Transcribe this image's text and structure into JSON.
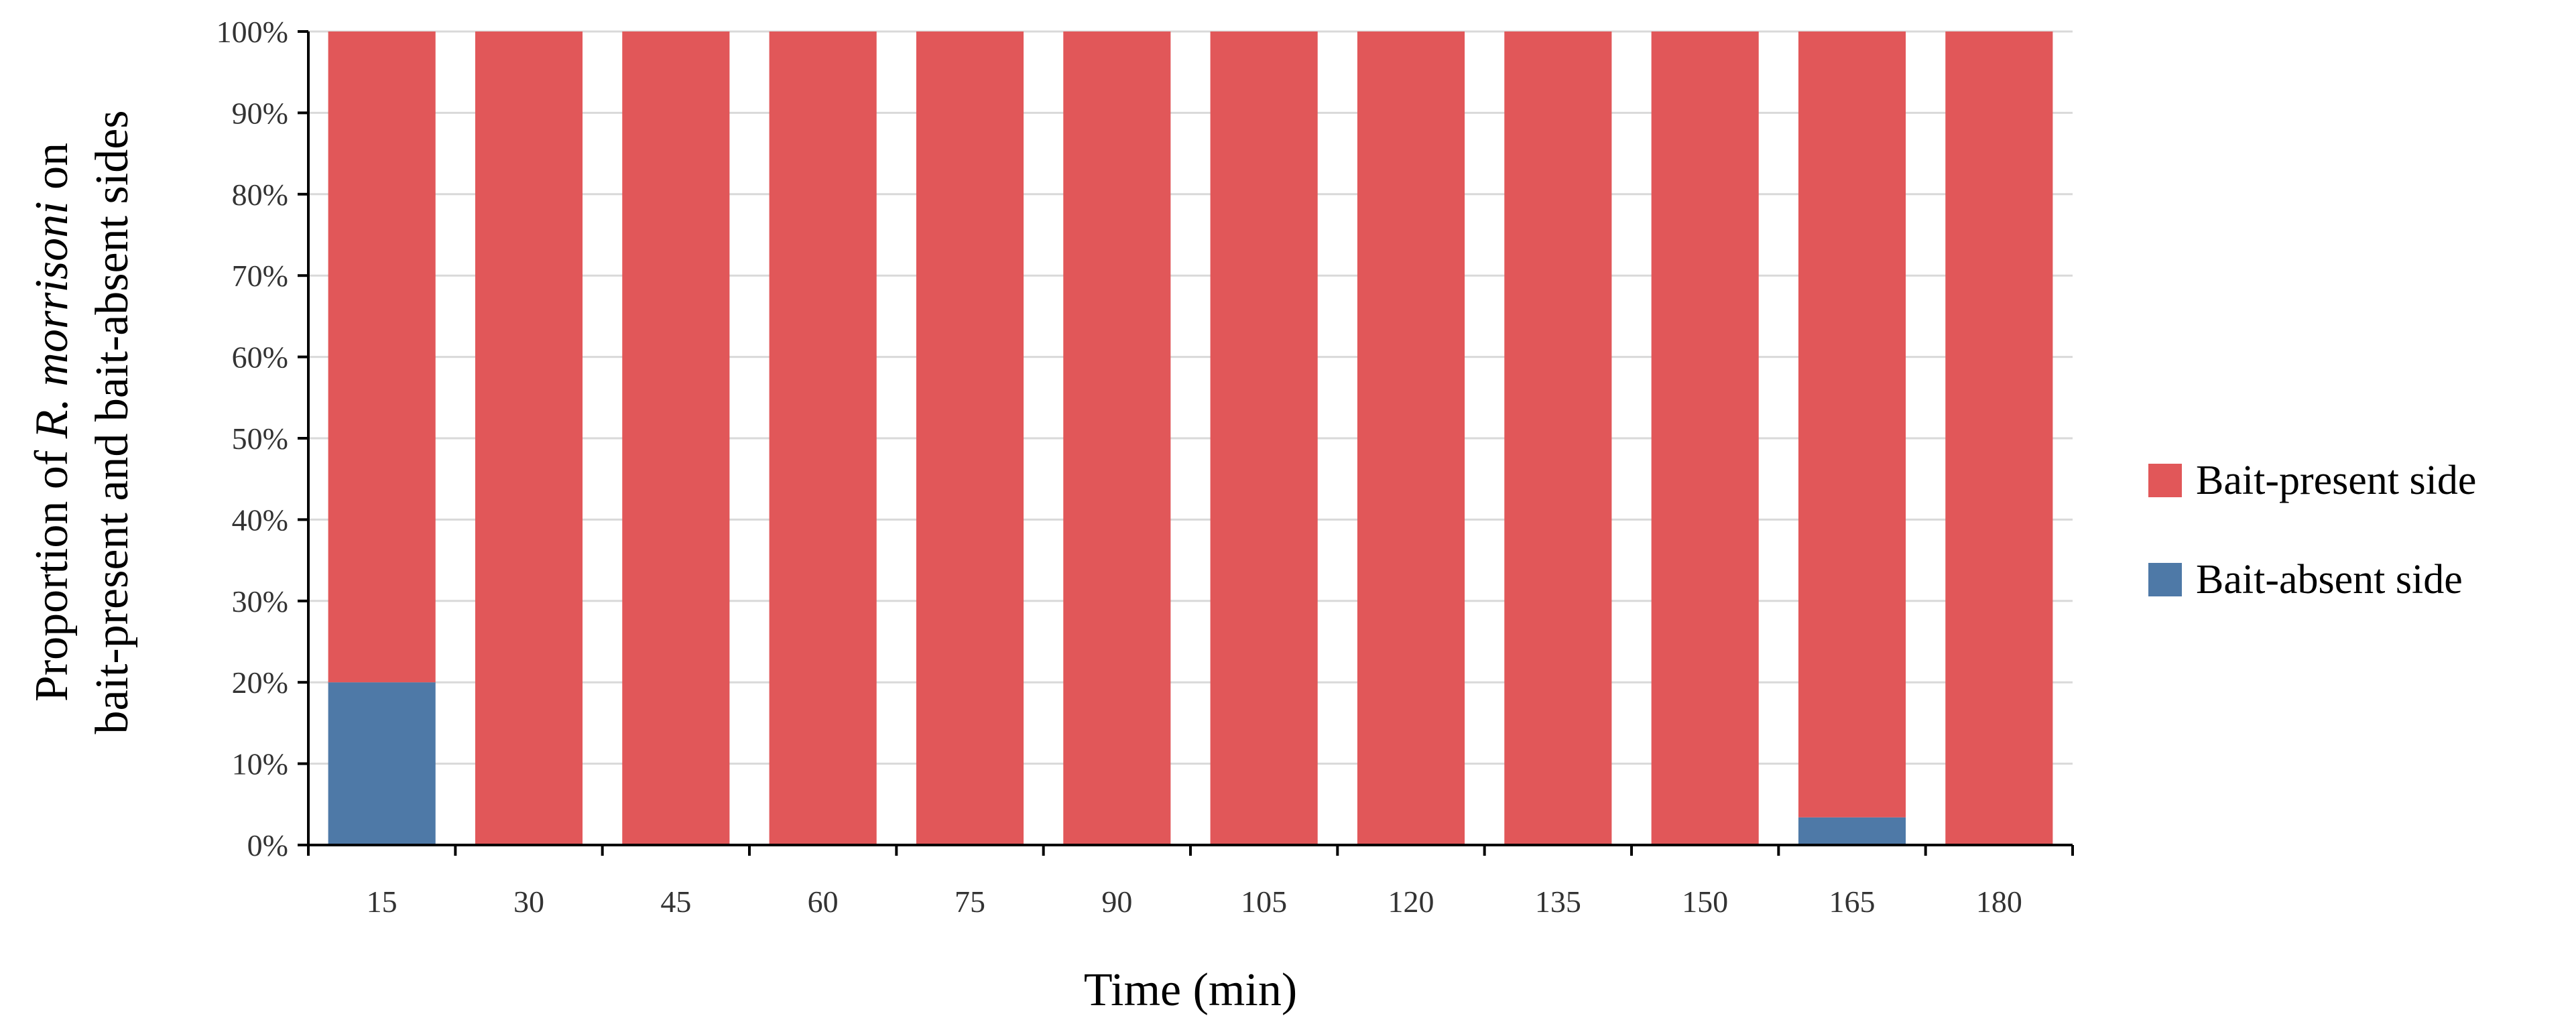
{
  "chart_data": {
    "type": "bar",
    "stacked": true,
    "categories": [
      "15",
      "30",
      "45",
      "60",
      "75",
      "90",
      "105",
      "120",
      "135",
      "150",
      "165",
      "180"
    ],
    "series": [
      {
        "name": "Bait-absent side",
        "color": "#4e79a7",
        "values": [
          20,
          0,
          0,
          0,
          0,
          0,
          0,
          0,
          0,
          0,
          3.4,
          0
        ]
      },
      {
        "name": "Bait-present side",
        "color": "#e15759",
        "values": [
          80,
          100,
          100,
          100,
          100,
          100,
          100,
          100,
          100,
          100,
          96.6,
          100
        ]
      }
    ],
    "xlabel": "Time (min)",
    "ylabel": {
      "line1_before": "Proportion of ",
      "line1_italic": "R. morrisoni",
      "line1_after": " on",
      "line2": "bait-present and bait-absent sides"
    },
    "yticks": [
      "0%",
      "10%",
      "20%",
      "30%",
      "40%",
      "50%",
      "60%",
      "70%",
      "80%",
      "90%",
      "100%"
    ],
    "ylim": [
      0,
      100
    ],
    "grid": true,
    "legend": {
      "position": "right",
      "items": [
        {
          "label": "Bait-present side",
          "color": "#e15759"
        },
        {
          "label": "Bait-absent side",
          "color": "#4e79a7"
        }
      ]
    }
  }
}
